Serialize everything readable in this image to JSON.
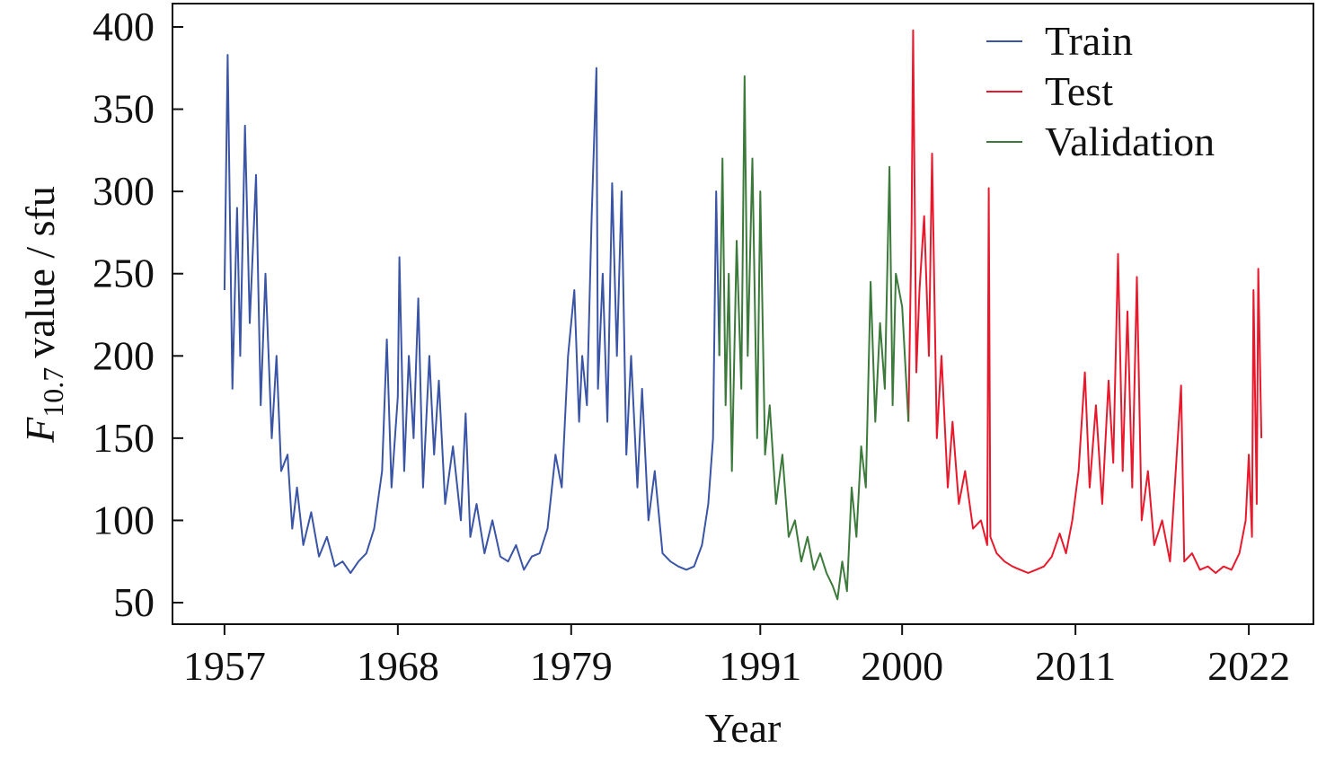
{
  "chart_data": {
    "type": "line",
    "xlabel": "Year",
    "ylabel": {
      "symbol": "F",
      "subscript": "10.7",
      "text": "value / sfu"
    },
    "xlim": [
      1953.7,
      2026.1
    ],
    "xticks": [
      1957,
      1968,
      1979,
      1991,
      2000,
      2011,
      2022
    ],
    "ylim": [
      36.9,
      414.2
    ],
    "yticks": [
      50,
      100,
      150,
      200,
      250,
      300,
      350,
      400
    ],
    "legend": "upper right",
    "series": [
      {
        "name": "Train",
        "color": "#3a54a6",
        "x": [
          1957.0,
          1957.2,
          1957.5,
          1957.8,
          1958.0,
          1958.3,
          1958.6,
          1959.0,
          1959.3,
          1959.6,
          1960.0,
          1960.3,
          1960.6,
          1961.0,
          1961.3,
          1961.6,
          1962.0,
          1962.5,
          1963.0,
          1963.5,
          1964.0,
          1964.5,
          1965.0,
          1965.5,
          1966.0,
          1966.5,
          1967.0,
          1967.3,
          1967.6,
          1968.0,
          1968.1,
          1968.4,
          1968.7,
          1969.0,
          1969.3,
          1969.6,
          1970.0,
          1970.3,
          1970.6,
          1971.0,
          1971.5,
          1972.0,
          1972.3,
          1972.6,
          1973.0,
          1973.5,
          1974.0,
          1974.5,
          1975.0,
          1975.5,
          1976.0,
          1976.5,
          1977.0,
          1977.5,
          1978.0,
          1978.4,
          1978.8,
          1979.2,
          1979.5,
          1979.7,
          1980.0,
          1980.3,
          1980.6,
          1980.7,
          1981.0,
          1981.3,
          1981.6,
          1981.9,
          1982.2,
          1982.5,
          1982.8,
          1983.2,
          1983.5,
          1983.9,
          1984.3,
          1984.8,
          1985.3,
          1985.8,
          1986.3,
          1986.8,
          1987.3,
          1987.7,
          1988.0,
          1988.2,
          1988.4
        ],
        "values": [
          240,
          383,
          180,
          290,
          200,
          340,
          220,
          310,
          170,
          250,
          150,
          200,
          130,
          140,
          95,
          120,
          85,
          105,
          78,
          90,
          72,
          75,
          68,
          75,
          80,
          95,
          130,
          210,
          120,
          175,
          260,
          130,
          200,
          150,
          235,
          120,
          200,
          140,
          185,
          110,
          145,
          100,
          165,
          90,
          110,
          80,
          100,
          78,
          75,
          85,
          70,
          78,
          80,
          95,
          140,
          120,
          200,
          240,
          160,
          200,
          170,
          285,
          375,
          180,
          250,
          160,
          305,
          200,
          300,
          140,
          200,
          120,
          180,
          100,
          130,
          80,
          75,
          72,
          70,
          72,
          85,
          110,
          150,
          300,
          200
        ]
      },
      {
        "name": "Test",
        "color": "#e8192c",
        "x": [
          2000.4,
          2000.6,
          2000.7,
          2000.9,
          2001.1,
          2001.4,
          2001.7,
          2001.9,
          2002.2,
          2002.5,
          2002.9,
          2003.2,
          2003.6,
          2004.0,
          2004.5,
          2005.0,
          2005.4,
          2005.5,
          2005.6,
          2006.0,
          2006.5,
          2007.0,
          2007.5,
          2008.0,
          2008.5,
          2009.0,
          2009.5,
          2010.0,
          2010.4,
          2010.8,
          2011.2,
          2011.6,
          2011.9,
          2012.3,
          2012.7,
          2013.1,
          2013.4,
          2013.7,
          2014.0,
          2014.3,
          2014.6,
          2014.9,
          2015.2,
          2015.6,
          2016.0,
          2016.5,
          2017.0,
          2017.7,
          2017.9,
          2018.4,
          2018.9,
          2019.4,
          2019.9,
          2020.4,
          2020.9,
          2021.4,
          2021.8,
          2022.0,
          2022.2,
          2022.3,
          2022.5,
          2022.6,
          2022.8
        ],
        "values": [
          160,
          280,
          398,
          190,
          240,
          285,
          200,
          323,
          150,
          200,
          120,
          160,
          110,
          130,
          95,
          100,
          85,
          302,
          90,
          80,
          75,
          72,
          70,
          68,
          70,
          72,
          78,
          92,
          80,
          100,
          130,
          190,
          120,
          170,
          110,
          185,
          135,
          262,
          130,
          227,
          120,
          248,
          100,
          130,
          85,
          100,
          75,
          182,
          75,
          80,
          70,
          72,
          68,
          72,
          70,
          80,
          100,
          140,
          90,
          240,
          110,
          253,
          150
        ]
      },
      {
        "name": "Validation",
        "color": "#3b7a3a",
        "x": [
          1988.4,
          1988.6,
          1988.8,
          1989.0,
          1989.2,
          1989.5,
          1989.8,
          1990.0,
          1990.2,
          1990.5,
          1990.8,
          1991.0,
          1991.3,
          1991.6,
          1992.0,
          1992.4,
          1992.8,
          1993.2,
          1993.6,
          1994.0,
          1994.4,
          1994.8,
          1995.2,
          1995.6,
          1995.9,
          1996.2,
          1996.5,
          1996.8,
          1997.1,
          1997.4,
          1997.7,
          1998.0,
          1998.3,
          1998.6,
          1998.9,
          1999.2,
          1999.4,
          1999.6,
          2000.0,
          2000.4
        ],
        "values": [
          200,
          320,
          170,
          250,
          130,
          270,
          180,
          370,
          200,
          320,
          150,
          300,
          140,
          170,
          110,
          140,
          90,
          100,
          75,
          90,
          70,
          80,
          68,
          60,
          52,
          75,
          57,
          120,
          90,
          145,
          120,
          245,
          160,
          220,
          180,
          315,
          170,
          250,
          230,
          160
        ]
      }
    ]
  }
}
